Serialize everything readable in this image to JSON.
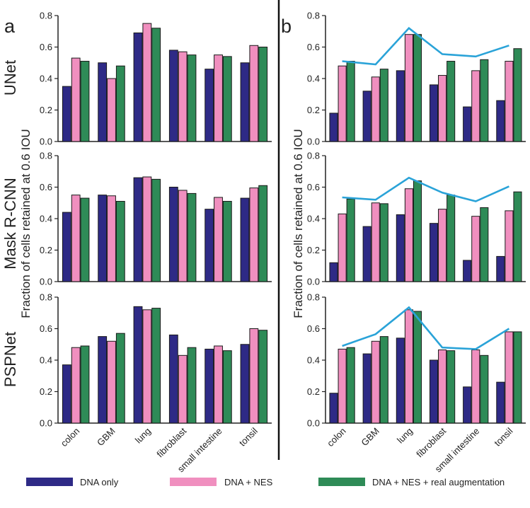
{
  "panels": {
    "a": "a",
    "b": "b"
  },
  "row_labels": [
    "UNet",
    "Mask R-CNN",
    "PSPNet"
  ],
  "ylabel": "Fraction of cells retained at 0.6 IOU",
  "legend": [
    {
      "label": "DNA only",
      "color": "#2e2a86"
    },
    {
      "label": "DNA + NES",
      "color": "#f08fbf"
    },
    {
      "label": "DNA + NES + real augmentation",
      "color": "#2e8b57"
    }
  ],
  "colors": {
    "line": "#2aa3d8",
    "divider": "#111111",
    "axis": "#222222"
  },
  "chart_data": [
    {
      "type": "bar",
      "panel": "a",
      "row": "UNet",
      "categories": [
        "colon",
        "GBM",
        "lung",
        "fibroblast",
        "small intestine",
        "tonsil"
      ],
      "ylim": [
        0,
        0.8
      ],
      "yticks": [
        "0.0",
        "0.2",
        "0.4",
        "0.6",
        "0.8"
      ],
      "series": [
        {
          "name": "DNA only",
          "values": [
            0.35,
            0.5,
            0.69,
            0.58,
            0.46,
            0.5
          ]
        },
        {
          "name": "DNA + NES",
          "values": [
            0.53,
            0.4,
            0.75,
            0.57,
            0.55,
            0.61
          ]
        },
        {
          "name": "DNA + NES + real augmentation",
          "values": [
            0.51,
            0.48,
            0.72,
            0.55,
            0.54,
            0.6
          ]
        }
      ]
    },
    {
      "type": "bar",
      "panel": "a",
      "row": "Mask R-CNN",
      "categories": [
        "colon",
        "GBM",
        "lung",
        "fibroblast",
        "small intestine",
        "tonsil"
      ],
      "ylim": [
        0,
        0.8
      ],
      "yticks": [
        "0.0",
        "0.2",
        "0.4",
        "0.6",
        "0.8"
      ],
      "series": [
        {
          "name": "DNA only",
          "values": [
            0.44,
            0.55,
            0.66,
            0.6,
            0.46,
            0.53
          ]
        },
        {
          "name": "DNA + NES",
          "values": [
            0.55,
            0.545,
            0.665,
            0.58,
            0.535,
            0.595
          ]
        },
        {
          "name": "DNA + NES + real augmentation",
          "values": [
            0.53,
            0.51,
            0.65,
            0.56,
            0.51,
            0.61
          ]
        }
      ]
    },
    {
      "type": "bar",
      "panel": "a",
      "row": "PSPNet",
      "categories": [
        "colon",
        "GBM",
        "lung",
        "fibroblast",
        "small intestine",
        "tonsil"
      ],
      "ylim": [
        0,
        0.8
      ],
      "yticks": [
        "0.0",
        "0.2",
        "0.4",
        "0.6",
        "0.8"
      ],
      "series": [
        {
          "name": "DNA only",
          "values": [
            0.37,
            0.55,
            0.74,
            0.56,
            0.47,
            0.5
          ]
        },
        {
          "name": "DNA + NES",
          "values": [
            0.48,
            0.52,
            0.72,
            0.43,
            0.49,
            0.6
          ]
        },
        {
          "name": "DNA + NES + real augmentation",
          "values": [
            0.49,
            0.57,
            0.73,
            0.48,
            0.46,
            0.59
          ]
        }
      ]
    },
    {
      "type": "bar",
      "panel": "b",
      "row": "UNet",
      "categories": [
        "colon",
        "GBM",
        "lung",
        "fibroblast",
        "small intestine",
        "tonsil"
      ],
      "ylim": [
        0,
        0.8
      ],
      "yticks": [
        "0.0",
        "0.2",
        "0.4",
        "0.6",
        "0.8"
      ],
      "series": [
        {
          "name": "DNA only",
          "values": [
            0.18,
            0.32,
            0.45,
            0.36,
            0.22,
            0.26
          ]
        },
        {
          "name": "DNA + NES",
          "values": [
            0.48,
            0.41,
            0.68,
            0.42,
            0.45,
            0.51
          ]
        },
        {
          "name": "DNA + NES + real augmentation",
          "values": [
            0.51,
            0.46,
            0.68,
            0.51,
            0.52,
            0.59
          ]
        }
      ],
      "line": [
        0.51,
        0.49,
        0.72,
        0.555,
        0.54,
        0.61
      ]
    },
    {
      "type": "bar",
      "panel": "b",
      "row": "Mask R-CNN",
      "categories": [
        "colon",
        "GBM",
        "lung",
        "fibroblast",
        "small intestine",
        "tonsil"
      ],
      "ylim": [
        0,
        0.8
      ],
      "yticks": [
        "0.0",
        "0.2",
        "0.4",
        "0.6",
        "0.8"
      ],
      "series": [
        {
          "name": "DNA only",
          "values": [
            0.12,
            0.35,
            0.425,
            0.37,
            0.135,
            0.16
          ]
        },
        {
          "name": "DNA + NES",
          "values": [
            0.43,
            0.5,
            0.59,
            0.46,
            0.415,
            0.45
          ]
        },
        {
          "name": "DNA + NES + real augmentation",
          "values": [
            0.525,
            0.495,
            0.64,
            0.55,
            0.47,
            0.57
          ]
        }
      ],
      "line": [
        0.535,
        0.52,
        0.66,
        0.565,
        0.51,
        0.605
      ]
    },
    {
      "type": "bar",
      "panel": "b",
      "row": "PSPNet",
      "categories": [
        "colon",
        "GBM",
        "lung",
        "fibroblast",
        "small intestine",
        "tonsil"
      ],
      "ylim": [
        0,
        0.8
      ],
      "yticks": [
        "0.0",
        "0.2",
        "0.4",
        "0.6",
        "0.8"
      ],
      "series": [
        {
          "name": "DNA only",
          "values": [
            0.19,
            0.44,
            0.54,
            0.4,
            0.23,
            0.26
          ]
        },
        {
          "name": "DNA + NES",
          "values": [
            0.47,
            0.52,
            0.72,
            0.465,
            0.465,
            0.58
          ]
        },
        {
          "name": "DNA + NES + real augmentation",
          "values": [
            0.48,
            0.55,
            0.71,
            0.46,
            0.43,
            0.58
          ]
        }
      ],
      "line": [
        0.49,
        0.565,
        0.735,
        0.48,
        0.47,
        0.6
      ]
    }
  ]
}
